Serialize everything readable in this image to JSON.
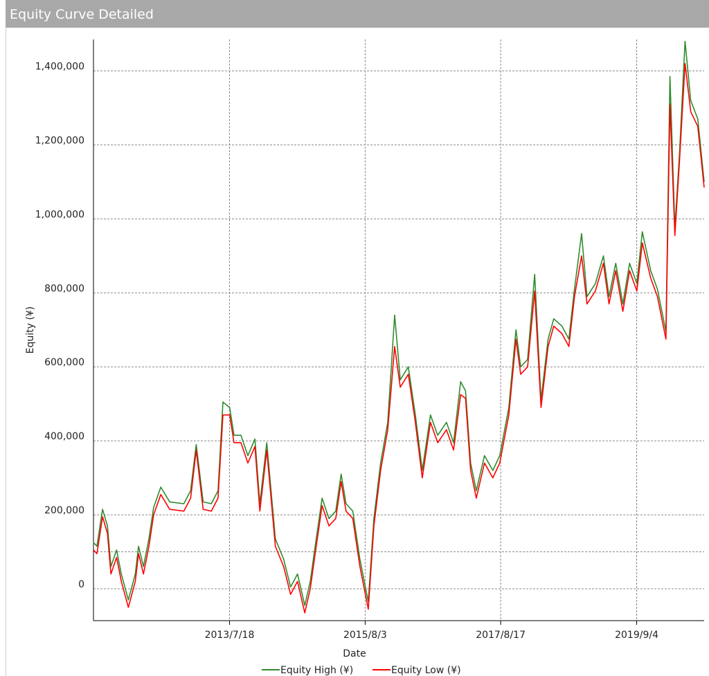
{
  "window_title": "Equity Curve Detailed",
  "chart_data": {
    "type": "line",
    "x_label": "Date",
    "y_label": "Equity (¥)",
    "x": [
      "2011/7/1",
      "2011/7/20",
      "2011/8/20",
      "2011/9/16",
      "2011/10/5",
      "2011/11/5",
      "2011/12/1",
      "2012/1/9",
      "2012/2/16",
      "2012/3/5",
      "2012/4/1",
      "2012/5/1",
      "2012/5/27",
      "2012/7/5",
      "2012/8/23",
      "2012/11/9",
      "2012/12/16",
      "2013/1/16",
      "2013/2/23",
      "2013/4/9",
      "2013/5/16",
      "2013/6/12",
      "2013/7/19",
      "2013/8/12",
      "2013/9/19",
      "2013/10/27",
      "2013/12/5",
      "2014/1/1",
      "2014/2/8",
      "2014/3/27",
      "2014/5/12",
      "2014/6/19",
      "2014/7/27",
      "2014/9/5",
      "2014/10/5",
      "2014/11/1",
      "2014/12/9",
      "2015/1/16",
      "2015/2/22",
      "2015/3/24",
      "2015/4/20",
      "2015/5/27",
      "2015/7/5",
      "2015/8/20",
      "2015/9/20",
      "2015/10/27",
      "2015/12/5",
      "2016/1/12",
      "2016/2/12",
      "2016/3/27",
      "2016/5/5",
      "2016/6/12",
      "2016/7/27",
      "2016/9/5",
      "2016/10/23",
      "2016/12/1",
      "2017/1/9",
      "2017/2/5",
      "2017/3/5",
      "2017/4/5",
      "2017/5/20",
      "2017/7/5",
      "2017/8/12",
      "2017/10/1",
      "2017/11/9",
      "2017/12/5",
      "2018/1/12",
      "2018/2/20",
      "2018/3/27",
      "2018/5/5",
      "2018/6/5",
      "2018/7/20",
      "2018/8/27",
      "2018/9/27",
      "2018/11/5",
      "2018/12/5",
      "2019/1/20",
      "2019/3/5",
      "2019/4/5",
      "2019/5/12",
      "2019/6/20",
      "2019/7/27",
      "2019/9/5",
      "2019/10/5",
      "2019/11/20",
      "2019/12/27",
      "2020/2/12",
      "2020/3/5",
      "2020/4/1",
      "2020/4/27",
      "2020/5/27",
      "2020/6/27",
      "2020/8/5",
      "2020/9/9"
    ],
    "series": [
      {
        "name": "Equity High (¥)",
        "color": "#2e8b2e",
        "values": [
          125000,
          115000,
          215000,
          170000,
          60000,
          105000,
          40000,
          -30000,
          40000,
          115000,
          60000,
          135000,
          220000,
          275000,
          235000,
          230000,
          265000,
          390000,
          235000,
          230000,
          265000,
          505000,
          490000,
          415000,
          415000,
          360000,
          405000,
          230000,
          395000,
          135000,
          80000,
          5000,
          40000,
          -45000,
          20000,
          115000,
          245000,
          190000,
          210000,
          310000,
          230000,
          210000,
          80000,
          -35000,
          190000,
          340000,
          450000,
          740000,
          565000,
          600000,
          470000,
          320000,
          470000,
          415000,
          450000,
          395000,
          560000,
          535000,
          340000,
          265000,
          360000,
          320000,
          360000,
          490000,
          700000,
          600000,
          620000,
          850000,
          510000,
          675000,
          730000,
          710000,
          675000,
          810000,
          960000,
          790000,
          825000,
          900000,
          790000,
          880000,
          770000,
          880000,
          825000,
          965000,
          860000,
          810000,
          695000,
          1385000,
          975000,
          1180000,
          1480000,
          1320000,
          1270000,
          1100000
        ]
      },
      {
        "name": "Equity Low (¥)",
        "color": "#ff0000",
        "values": [
          105000,
          95000,
          195000,
          150000,
          40000,
          85000,
          20000,
          -50000,
          20000,
          95000,
          40000,
          115000,
          200000,
          255000,
          215000,
          210000,
          245000,
          375000,
          215000,
          210000,
          245000,
          470000,
          470000,
          395000,
          395000,
          340000,
          385000,
          210000,
          375000,
          115000,
          60000,
          -15000,
          20000,
          -65000,
          0,
          95000,
          225000,
          170000,
          190000,
          290000,
          210000,
          190000,
          60000,
          -55000,
          170000,
          320000,
          430000,
          655000,
          545000,
          580000,
          450000,
          300000,
          450000,
          395000,
          430000,
          375000,
          525000,
          515000,
          320000,
          245000,
          340000,
          300000,
          340000,
          470000,
          675000,
          580000,
          600000,
          805000,
          490000,
          655000,
          710000,
          690000,
          655000,
          790000,
          900000,
          770000,
          805000,
          880000,
          770000,
          860000,
          750000,
          860000,
          805000,
          935000,
          840000,
          790000,
          675000,
          1310000,
          955000,
          1160000,
          1420000,
          1290000,
          1250000,
          1085000
        ]
      }
    ],
    "xlim": [
      "2011/7/1",
      "2020/9/9"
    ],
    "xticks": [
      "2013/7/18",
      "2015/8/3",
      "2017/8/17",
      "2019/9/4"
    ],
    "ylim": [
      -86000,
      1485000
    ],
    "yticks": [
      0,
      {
        "value": 200000,
        "label": "200,000"
      },
      {
        "value": 400000,
        "label": "400,000"
      },
      {
        "value": 600000,
        "label": "600,000"
      },
      {
        "value": 800000,
        "label": "800,000"
      },
      {
        "value": 1000000,
        "label": "1,000,000"
      },
      {
        "value": 1200000,
        "label": "1,200,000"
      },
      {
        "value": 1400000,
        "label": "1,400,000"
      }
    ],
    "reference_line": 100000,
    "grid": true,
    "legend": "bottom"
  }
}
